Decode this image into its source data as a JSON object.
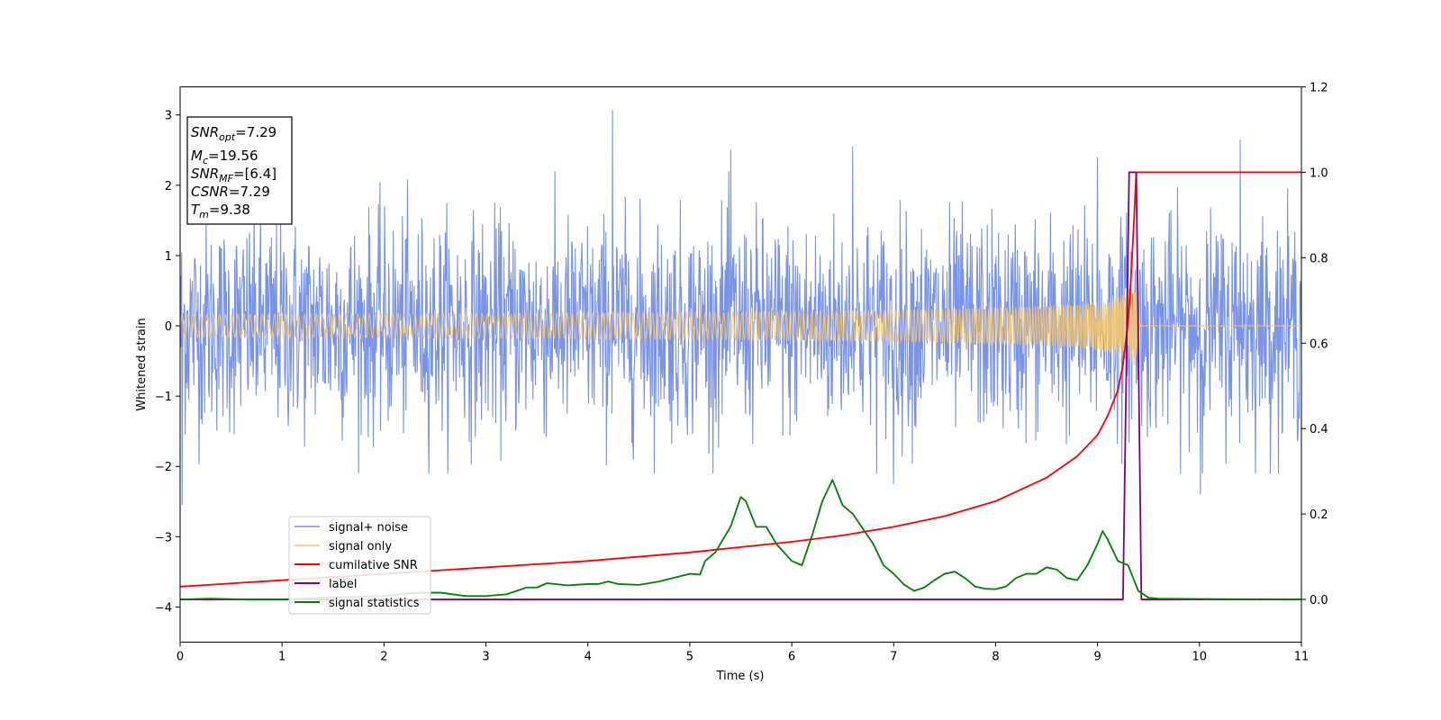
{
  "chart_data": {
    "type": "line",
    "title": "",
    "xlabel": "Time (s)",
    "ylabel": "Whitened strain",
    "xlim": [
      0,
      11
    ],
    "ylim_left": [
      -4.5,
      3.4
    ],
    "ylim_right": [
      -0.1,
      1.2
    ],
    "x_ticks": [
      "0",
      "1",
      "2",
      "3",
      "4",
      "5",
      "6",
      "7",
      "8",
      "9",
      "10",
      "11"
    ],
    "y_ticks_left": [
      "−4",
      "−3",
      "−2",
      "−1",
      "0",
      "1",
      "2",
      "3"
    ],
    "y_ticks_right": [
      "0.0",
      "0.2",
      "0.4",
      "0.6",
      "0.8",
      "1.0",
      "1.2"
    ],
    "grid": false,
    "legend_position": "lower-left",
    "annotation": {
      "snr_opt": {
        "base": "SNR",
        "sub": "opt",
        "value": "=7.29"
      },
      "mc": {
        "base": "M",
        "sub": "c",
        "value": "=19.56"
      },
      "snr_mf": {
        "base": "SNR",
        "sub": "MF",
        "value": "=[6.4]"
      },
      "csnr": {
        "base": "CSNR",
        "sub": "",
        "value": "=7.29"
      },
      "tm": {
        "base": "T",
        "sub": "m",
        "value": "=9.38"
      }
    },
    "series": [
      {
        "name": "signal+ noise",
        "color": "#7893e8",
        "axis": "left",
        "kind": "noise",
        "sigma": 0.75,
        "extremes": [
          [
            0.02,
            -2.55
          ],
          [
            4.24,
            3.07
          ],
          [
            10.4,
            2.65
          ],
          [
            5.4,
            2.5
          ],
          [
            6.6,
            2.55
          ],
          [
            9.0,
            2.4
          ],
          [
            10.01,
            -2.4
          ],
          [
            7.0,
            -2.25
          ]
        ]
      },
      {
        "name": "signal only",
        "color": "#f7c76a",
        "axis": "left",
        "kind": "chirp",
        "merger_time": 9.38,
        "peak_amplitude": 0.85
      },
      {
        "name": "cumilative SNR",
        "color": "#ff0000",
        "axis": "right",
        "x": [
          0,
          1,
          2,
          3,
          4,
          5,
          6,
          6.5,
          7,
          7.5,
          8,
          8.5,
          8.8,
          9.0,
          9.1,
          9.2,
          9.25,
          9.3,
          9.33,
          9.36,
          9.38,
          11
        ],
        "y": [
          0.03,
          0.045,
          0.06,
          0.075,
          0.09,
          0.11,
          0.135,
          0.15,
          0.17,
          0.195,
          0.23,
          0.285,
          0.335,
          0.385,
          0.43,
          0.49,
          0.55,
          0.65,
          0.76,
          0.9,
          1.0,
          1.0
        ]
      },
      {
        "name": "label",
        "color": "#800080",
        "axis": "right",
        "x": [
          0,
          9.25,
          9.31,
          9.38,
          9.43,
          11
        ],
        "y": [
          0.0,
          0.0,
          1.0,
          1.0,
          0.0,
          0.0
        ]
      },
      {
        "name": "signal statistics",
        "color": "#008000",
        "axis": "right",
        "x": [
          0,
          0.3,
          0.6,
          1.0,
          1.5,
          2.0,
          2.3,
          2.55,
          2.8,
          3.0,
          3.2,
          3.4,
          3.5,
          3.6,
          3.8,
          4.0,
          4.1,
          4.2,
          4.3,
          4.5,
          4.7,
          4.9,
          5.0,
          5.1,
          5.15,
          5.25,
          5.4,
          5.5,
          5.55,
          5.65,
          5.75,
          5.85,
          6.0,
          6.1,
          6.2,
          6.3,
          6.4,
          6.5,
          6.6,
          6.8,
          6.9,
          7.0,
          7.1,
          7.2,
          7.3,
          7.4,
          7.5,
          7.6,
          7.7,
          7.8,
          7.9,
          8.0,
          8.1,
          8.2,
          8.3,
          8.4,
          8.5,
          8.6,
          8.7,
          8.8,
          8.9,
          9.0,
          9.05,
          9.1,
          9.2,
          9.3,
          9.4,
          9.5,
          9.6,
          10.0,
          11.0
        ],
        "y": [
          0.0,
          0.002,
          0.0,
          0.0,
          0.005,
          0.008,
          0.015,
          0.016,
          0.008,
          0.008,
          0.012,
          0.028,
          0.028,
          0.038,
          0.033,
          0.036,
          0.036,
          0.042,
          0.036,
          0.034,
          0.042,
          0.054,
          0.06,
          0.058,
          0.09,
          0.11,
          0.17,
          0.24,
          0.23,
          0.17,
          0.17,
          0.13,
          0.09,
          0.08,
          0.15,
          0.23,
          0.28,
          0.22,
          0.2,
          0.13,
          0.08,
          0.06,
          0.035,
          0.02,
          0.028,
          0.045,
          0.06,
          0.065,
          0.05,
          0.03,
          0.025,
          0.024,
          0.03,
          0.05,
          0.06,
          0.06,
          0.075,
          0.07,
          0.05,
          0.045,
          0.08,
          0.13,
          0.16,
          0.14,
          0.09,
          0.08,
          0.02,
          0.004,
          0.002,
          0.001,
          0.0
        ]
      }
    ]
  }
}
